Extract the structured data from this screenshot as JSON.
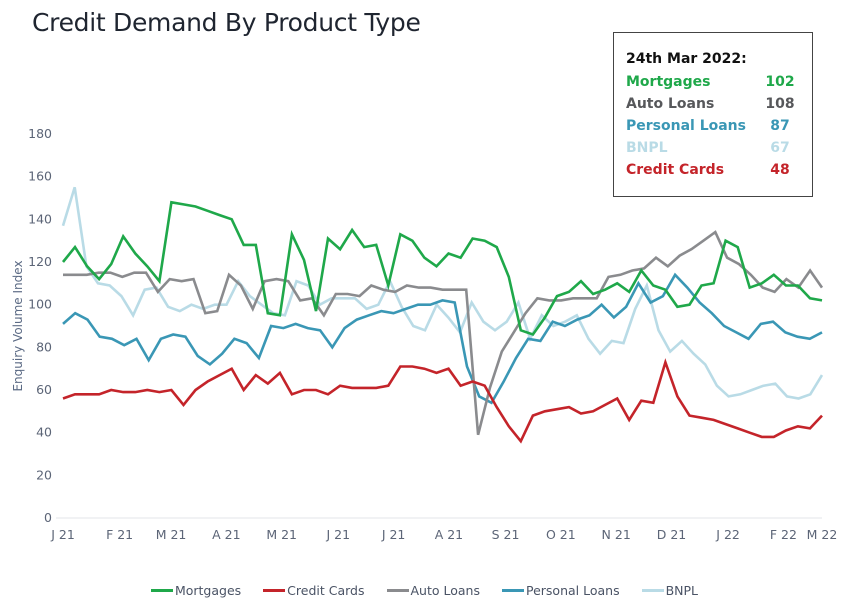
{
  "title": "Credit Demand By Product Type",
  "info_box": {
    "header": "24th Mar 2022:",
    "rows": [
      {
        "label": "Mortgages",
        "value": "102",
        "color": "#1fa84a"
      },
      {
        "label": "Auto Loans",
        "value": "108",
        "color": "#57585b"
      },
      {
        "label": "Personal Loans",
        "value": "87",
        "color": "#3a97b5"
      },
      {
        "label": "BNPL",
        "value": "67",
        "color": "#b9dbe6"
      },
      {
        "label": "Credit Cards",
        "value": "48",
        "color": "#c4242a"
      }
    ]
  },
  "chart_data": {
    "type": "line",
    "title": "Credit Demand By Product Type",
    "xlabel": "",
    "ylabel": "Enquiry Volume Index",
    "ylim": [
      0,
      180
    ],
    "yticks": [
      0,
      20,
      40,
      60,
      80,
      100,
      120,
      140,
      160,
      180
    ],
    "xtick_labels": [
      "J 21",
      "F 21",
      "M 21",
      "A 21",
      "M 21",
      "J 21",
      "J 21",
      "A 21",
      "S 21",
      "O 21",
      "N 21",
      "D 21",
      "J 22",
      "F 22",
      "M 22"
    ],
    "xtick_positions": [
      0,
      4.4,
      8.4,
      12.7,
      17,
      21.4,
      25.7,
      30,
      34.4,
      38.7,
      43,
      47.3,
      51.7,
      56,
      59
    ],
    "grid": false,
    "legend_position": "bottom",
    "series": [
      {
        "name": "Mortgages",
        "color": "#1fa84a",
        "values": [
          120,
          127,
          118,
          112,
          119,
          132,
          124,
          118,
          111,
          148,
          147,
          146,
          144,
          142,
          140,
          128,
          128,
          96,
          95,
          133,
          121,
          97,
          131,
          126,
          135,
          127,
          128,
          109,
          133,
          130,
          122,
          118,
          124,
          122,
          131,
          130,
          127,
          113,
          88,
          86,
          94,
          104,
          106,
          111,
          105,
          107,
          110,
          106,
          116,
          109,
          107,
          99,
          100,
          109,
          110,
          130,
          127,
          108,
          110,
          114,
          109,
          109,
          103,
          102
        ]
      },
      {
        "name": "Credit Cards",
        "color": "#c4242a",
        "values": [
          56,
          58,
          58,
          58,
          60,
          59,
          59,
          60,
          59,
          60,
          53,
          60,
          64,
          67,
          70,
          60,
          67,
          63,
          68,
          58,
          60,
          60,
          58,
          62,
          61,
          61,
          61,
          62,
          71,
          71,
          70,
          68,
          70,
          62,
          64,
          62,
          52,
          43,
          36,
          48,
          50,
          51,
          52,
          49,
          50,
          53,
          56,
          46,
          55,
          54,
          73,
          57,
          48,
          47,
          46,
          44,
          42,
          40,
          38,
          38,
          41,
          43,
          42,
          48
        ]
      },
      {
        "name": "Auto Loans",
        "color": "#8a8b8e",
        "values": [
          114,
          114,
          114,
          115,
          115,
          113,
          115,
          115,
          106,
          112,
          111,
          112,
          96,
          97,
          114,
          109,
          98,
          111,
          112,
          111,
          102,
          103,
          95,
          105,
          105,
          104,
          109,
          107,
          106,
          109,
          108,
          108,
          107,
          107,
          107,
          39,
          61,
          78,
          87,
          96,
          103,
          102,
          102,
          103,
          103,
          103,
          113,
          114,
          116,
          117,
          122,
          118,
          123,
          126,
          130,
          134,
          122,
          119,
          114,
          108,
          106,
          112,
          108,
          116,
          108
        ]
      },
      {
        "name": "Personal Loans",
        "color": "#3a97b5",
        "values": [
          91,
          96,
          93,
          85,
          84,
          81,
          84,
          74,
          84,
          86,
          85,
          76,
          72,
          77,
          84,
          82,
          75,
          90,
          89,
          91,
          89,
          88,
          80,
          89,
          93,
          95,
          97,
          96,
          98,
          100,
          100,
          102,
          101,
          71,
          57,
          54,
          64,
          75,
          84,
          83,
          92,
          90,
          93,
          95,
          100,
          94,
          99,
          110,
          101,
          104,
          114,
          108,
          101,
          96,
          90,
          87,
          84,
          91,
          92,
          87,
          85,
          84,
          87
        ]
      },
      {
        "name": "BNPL",
        "color": "#b9dbe6",
        "values": [
          137,
          155,
          118,
          110,
          109,
          104,
          95,
          107,
          108,
          99,
          97,
          100,
          98,
          100,
          100,
          111,
          104,
          100,
          96,
          95,
          111,
          109,
          100,
          103,
          103,
          103,
          98,
          100,
          111,
          99,
          90,
          88,
          100,
          94,
          87,
          101,
          92,
          88,
          92,
          101,
          84,
          95,
          90,
          92,
          95,
          84,
          77,
          83,
          82,
          98,
          109,
          88,
          78,
          83,
          77,
          72,
          62,
          57,
          58,
          60,
          62,
          63,
          57,
          56,
          58,
          67
        ]
      }
    ]
  },
  "legend": [
    {
      "label": "Mortgages",
      "color": "#1fa84a"
    },
    {
      "label": "Credit Cards",
      "color": "#c4242a"
    },
    {
      "label": "Auto Loans",
      "color": "#8a8b8e"
    },
    {
      "label": "Personal Loans",
      "color": "#3a97b5"
    },
    {
      "label": "BNPL",
      "color": "#b9dbe6"
    }
  ]
}
